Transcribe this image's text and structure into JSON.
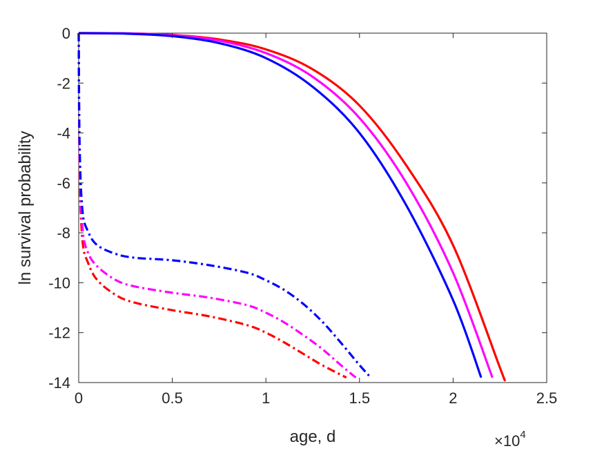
{
  "chart_data": {
    "type": "line",
    "title": "",
    "xlabel": "age, d",
    "ylabel": "ln survival probability",
    "x_exponent": {
      "base": "×10",
      "power": "4"
    },
    "xlim": [
      0,
      2.5
    ],
    "ylim": [
      -14,
      0
    ],
    "x_ticks": [
      0,
      0.5,
      1,
      1.5,
      2,
      2.5
    ],
    "x_tick_labels": [
      "0",
      "0.5",
      "1",
      "1.5",
      "2",
      "2.5"
    ],
    "y_ticks": [
      0,
      -2,
      -4,
      -6,
      -8,
      -10,
      -12,
      -14
    ],
    "y_tick_labels": [
      "0",
      "-2",
      "-4",
      "-6",
      "-8",
      "-10",
      "-12",
      "-14"
    ],
    "grid": false,
    "legend": "none",
    "series": [
      {
        "color": "#ff0000",
        "style": "solid",
        "x": [
          0,
          0.25,
          0.5,
          0.75,
          1.0,
          1.25,
          1.5,
          1.75,
          2.0,
          2.25,
          2.27
        ],
        "y": [
          0,
          -0.01,
          -0.07,
          -0.25,
          -0.65,
          -1.45,
          -2.9,
          -5.3,
          -8.5,
          -13.4,
          -13.8
        ]
      },
      {
        "color": "#ff00ff",
        "style": "solid",
        "x": [
          0,
          0.25,
          0.5,
          0.75,
          1.0,
          1.25,
          1.5,
          1.75,
          2.0,
          2.21
        ],
        "y": [
          0,
          -0.01,
          -0.08,
          -0.3,
          -0.8,
          -1.75,
          -3.4,
          -6.0,
          -9.6,
          -13.8
        ]
      },
      {
        "color": "#0000ff",
        "style": "solid",
        "x": [
          0,
          0.25,
          0.5,
          0.75,
          1.0,
          1.25,
          1.5,
          1.75,
          2.0,
          2.15
        ],
        "y": [
          0,
          -0.02,
          -0.12,
          -0.4,
          -1.0,
          -2.15,
          -4.0,
          -6.9,
          -10.7,
          -13.8
        ]
      },
      {
        "color": "#ff0000",
        "style": "dashdot",
        "x": [
          0,
          0.005,
          0.02,
          0.05,
          0.1,
          0.2,
          0.3,
          0.5,
          0.7,
          0.9,
          1.0,
          1.1,
          1.2,
          1.3,
          1.43
        ],
        "y": [
          0,
          -5.5,
          -8.3,
          -9.2,
          -9.9,
          -10.5,
          -10.8,
          -11.1,
          -11.35,
          -11.7,
          -12.0,
          -12.4,
          -12.85,
          -13.3,
          -13.8
        ]
      },
      {
        "color": "#ff00ff",
        "style": "dashdot",
        "x": [
          0,
          0.005,
          0.02,
          0.05,
          0.1,
          0.2,
          0.3,
          0.5,
          0.7,
          0.9,
          1.0,
          1.1,
          1.2,
          1.3,
          1.4,
          1.48
        ],
        "y": [
          0,
          -5.0,
          -7.8,
          -8.8,
          -9.35,
          -9.9,
          -10.15,
          -10.4,
          -10.6,
          -10.9,
          -11.2,
          -11.6,
          -12.1,
          -12.65,
          -13.3,
          -13.8
        ]
      },
      {
        "color": "#0000ff",
        "style": "dashdot",
        "x": [
          0,
          0.005,
          0.02,
          0.05,
          0.1,
          0.2,
          0.3,
          0.5,
          0.7,
          0.9,
          1.0,
          1.1,
          1.2,
          1.3,
          1.4,
          1.5,
          1.56
        ],
        "y": [
          0,
          -4.5,
          -7.1,
          -7.95,
          -8.5,
          -8.85,
          -9.0,
          -9.1,
          -9.3,
          -9.6,
          -9.9,
          -10.3,
          -10.85,
          -11.55,
          -12.4,
          -13.3,
          -13.8
        ]
      }
    ]
  }
}
